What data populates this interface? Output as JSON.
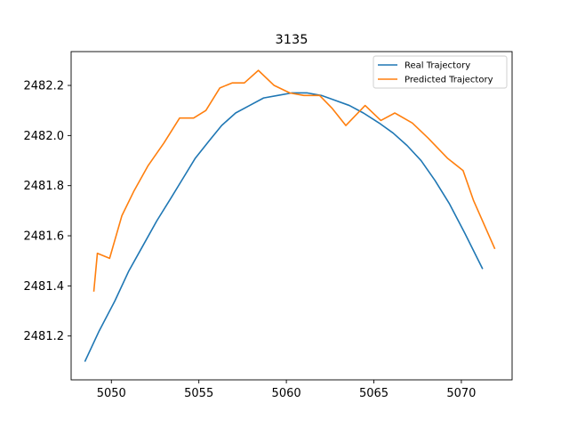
{
  "chart_data": {
    "type": "line",
    "title": "3135",
    "xlabel": "",
    "ylabel": "",
    "xlim": [
      5047.7,
      5072.9
    ],
    "ylim": [
      2481.025,
      2482.335
    ],
    "xticks": [
      5050,
      5055,
      5060,
      5065,
      5070
    ],
    "yticks": [
      2481.2,
      2481.4,
      2481.6,
      2481.8,
      2482.0,
      2482.2
    ],
    "xtick_labels": [
      "5050",
      "5055",
      "5060",
      "5065",
      "5070"
    ],
    "ytick_labels": [
      "2481.2",
      "2481.4",
      "2481.6",
      "2481.8",
      "2482.0",
      "2482.2"
    ],
    "grid": false,
    "legend_position": "upper right",
    "series": [
      {
        "name": "Real Trajectory",
        "color": "#1f77b4",
        "x": [
          5048.5,
          5049.3,
          5050.2,
          5051.0,
          5051.8,
          5052.6,
          5053.4,
          5054.1,
          5054.8,
          5055.6,
          5056.3,
          5057.1,
          5057.9,
          5058.7,
          5059.5,
          5060.3,
          5061.2,
          5062.0,
          5062.8,
          5063.6,
          5064.4,
          5065.3,
          5066.1,
          5066.9,
          5067.7,
          5068.5,
          5069.3,
          5070.2,
          5071.2
        ],
        "y": [
          2481.1,
          2481.22,
          2481.34,
          2481.46,
          2481.56,
          2481.66,
          2481.75,
          2481.83,
          2481.91,
          2481.98,
          2482.04,
          2482.09,
          2482.12,
          2482.15,
          2482.16,
          2482.17,
          2482.17,
          2482.16,
          2482.14,
          2482.12,
          2482.09,
          2482.05,
          2482.01,
          2481.96,
          2481.9,
          2481.82,
          2481.73,
          2481.61,
          2481.47
        ]
      },
      {
        "name": "Predicted Trajectory",
        "color": "#ff7f0e",
        "x": [
          5049.0,
          5049.2,
          5049.9,
          5050.6,
          5051.3,
          5052.1,
          5053.0,
          5053.9,
          5054.7,
          5055.4,
          5056.2,
          5056.9,
          5057.6,
          5058.4,
          5059.3,
          5060.2,
          5061.0,
          5061.9,
          5062.6,
          5063.4,
          5064.5,
          5065.4,
          5066.2,
          5067.2,
          5068.1,
          5069.2,
          5070.1,
          5070.7,
          5071.9
        ],
        "y": [
          2481.38,
          2481.53,
          2481.51,
          2481.68,
          2481.78,
          2481.88,
          2481.97,
          2482.07,
          2482.07,
          2482.1,
          2482.19,
          2482.21,
          2482.21,
          2482.26,
          2482.2,
          2482.17,
          2482.16,
          2482.16,
          2482.11,
          2482.04,
          2482.12,
          2482.06,
          2482.09,
          2482.05,
          2481.99,
          2481.91,
          2481.86,
          2481.74,
          2481.55
        ]
      }
    ]
  }
}
